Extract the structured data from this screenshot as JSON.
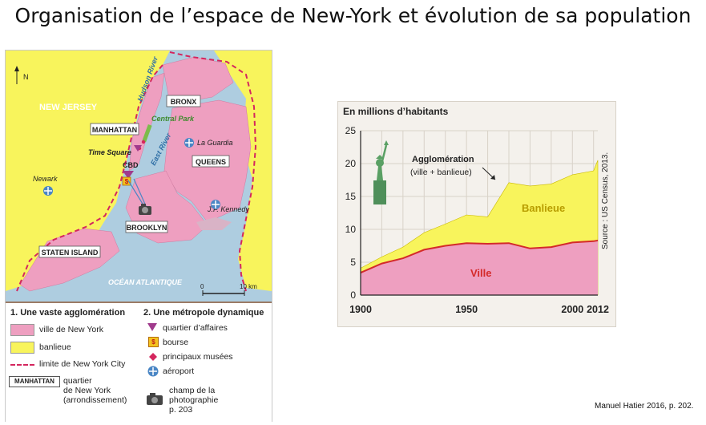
{
  "title": "Organisation de l’espace de New-York et évolution de sa population",
  "credit": "Manuel Hatier 2016, p. 202.",
  "colors": {
    "city": "#ee9fc0",
    "suburb": "#f8f45c",
    "water": "#aecde0",
    "limit": "#d4265e",
    "cbd": "#a03a8c",
    "airport": "#4a86c5"
  },
  "map": {
    "north": "N",
    "regions": {
      "new_jersey": "NEW JERSEY",
      "manhattan": "MANHATTAN",
      "bronx": "BRONX",
      "queens": "QUEENS",
      "brooklyn": "BROOKLYN",
      "staten_island": "STATEN ISLAND"
    },
    "places": {
      "hudson": "Hudson River",
      "central_park": "Central Park",
      "la_guardia": "La Guardia",
      "time_square": "Time Square",
      "east_river": "East River",
      "cbd": "CBD",
      "newark": "Newark",
      "jfk": "J.F. Kennedy",
      "ocean": "OCÉAN ATLANTIQUE"
    },
    "scale": {
      "zero": "0",
      "ten": "10 km"
    }
  },
  "legend": {
    "col1_title": "1. Une vaste agglomération",
    "col2_title": "2. Une métropole dynamique",
    "city": "ville de New York",
    "suburb": "banlieue",
    "limit": "limite de New York City",
    "boro_box": "MANHATTAN",
    "boro_l1": "quartier",
    "boro_l2": "de New York",
    "boro_l3": "(arrondissement)",
    "business": "quartier d’affaires",
    "bourse": "bourse",
    "bourse_icon": "$",
    "museums": "principaux musées",
    "airport": "aéroport",
    "photo_l1": "champ de la",
    "photo_l2": "photographie",
    "photo_l3": "p. 203"
  },
  "chart_data": {
    "type": "area",
    "ylabel": "En millions d’habitants",
    "source": "Source : US Census, 2013.",
    "xlim": [
      1900,
      2012
    ],
    "ylim": [
      0,
      25
    ],
    "x_ticks": [
      1900,
      1950,
      2000,
      2012
    ],
    "y_ticks": [
      0,
      5,
      10,
      15,
      20,
      25
    ],
    "annotation": {
      "l1": "Agglomération",
      "l2": "(ville + banlieue)"
    },
    "series": [
      {
        "name": "Ville",
        "x": [
          1900,
          1910,
          1920,
          1930,
          1940,
          1950,
          1960,
          1970,
          1980,
          1990,
          2000,
          2010,
          2012
        ],
        "values": [
          3.4,
          4.8,
          5.6,
          6.9,
          7.5,
          7.9,
          7.8,
          7.9,
          7.1,
          7.3,
          8.0,
          8.2,
          8.3
        ]
      },
      {
        "name": "Banlieue",
        "x": [
          1900,
          1910,
          1920,
          1930,
          1940,
          1950,
          1960,
          1970,
          1980,
          1990,
          2000,
          2010,
          2012
        ],
        "values": [
          0.7,
          1.0,
          1.7,
          2.6,
          3.3,
          4.3,
          4.1,
          9.2,
          9.5,
          9.6,
          10.3,
          10.7,
          12.2
        ]
      }
    ]
  }
}
